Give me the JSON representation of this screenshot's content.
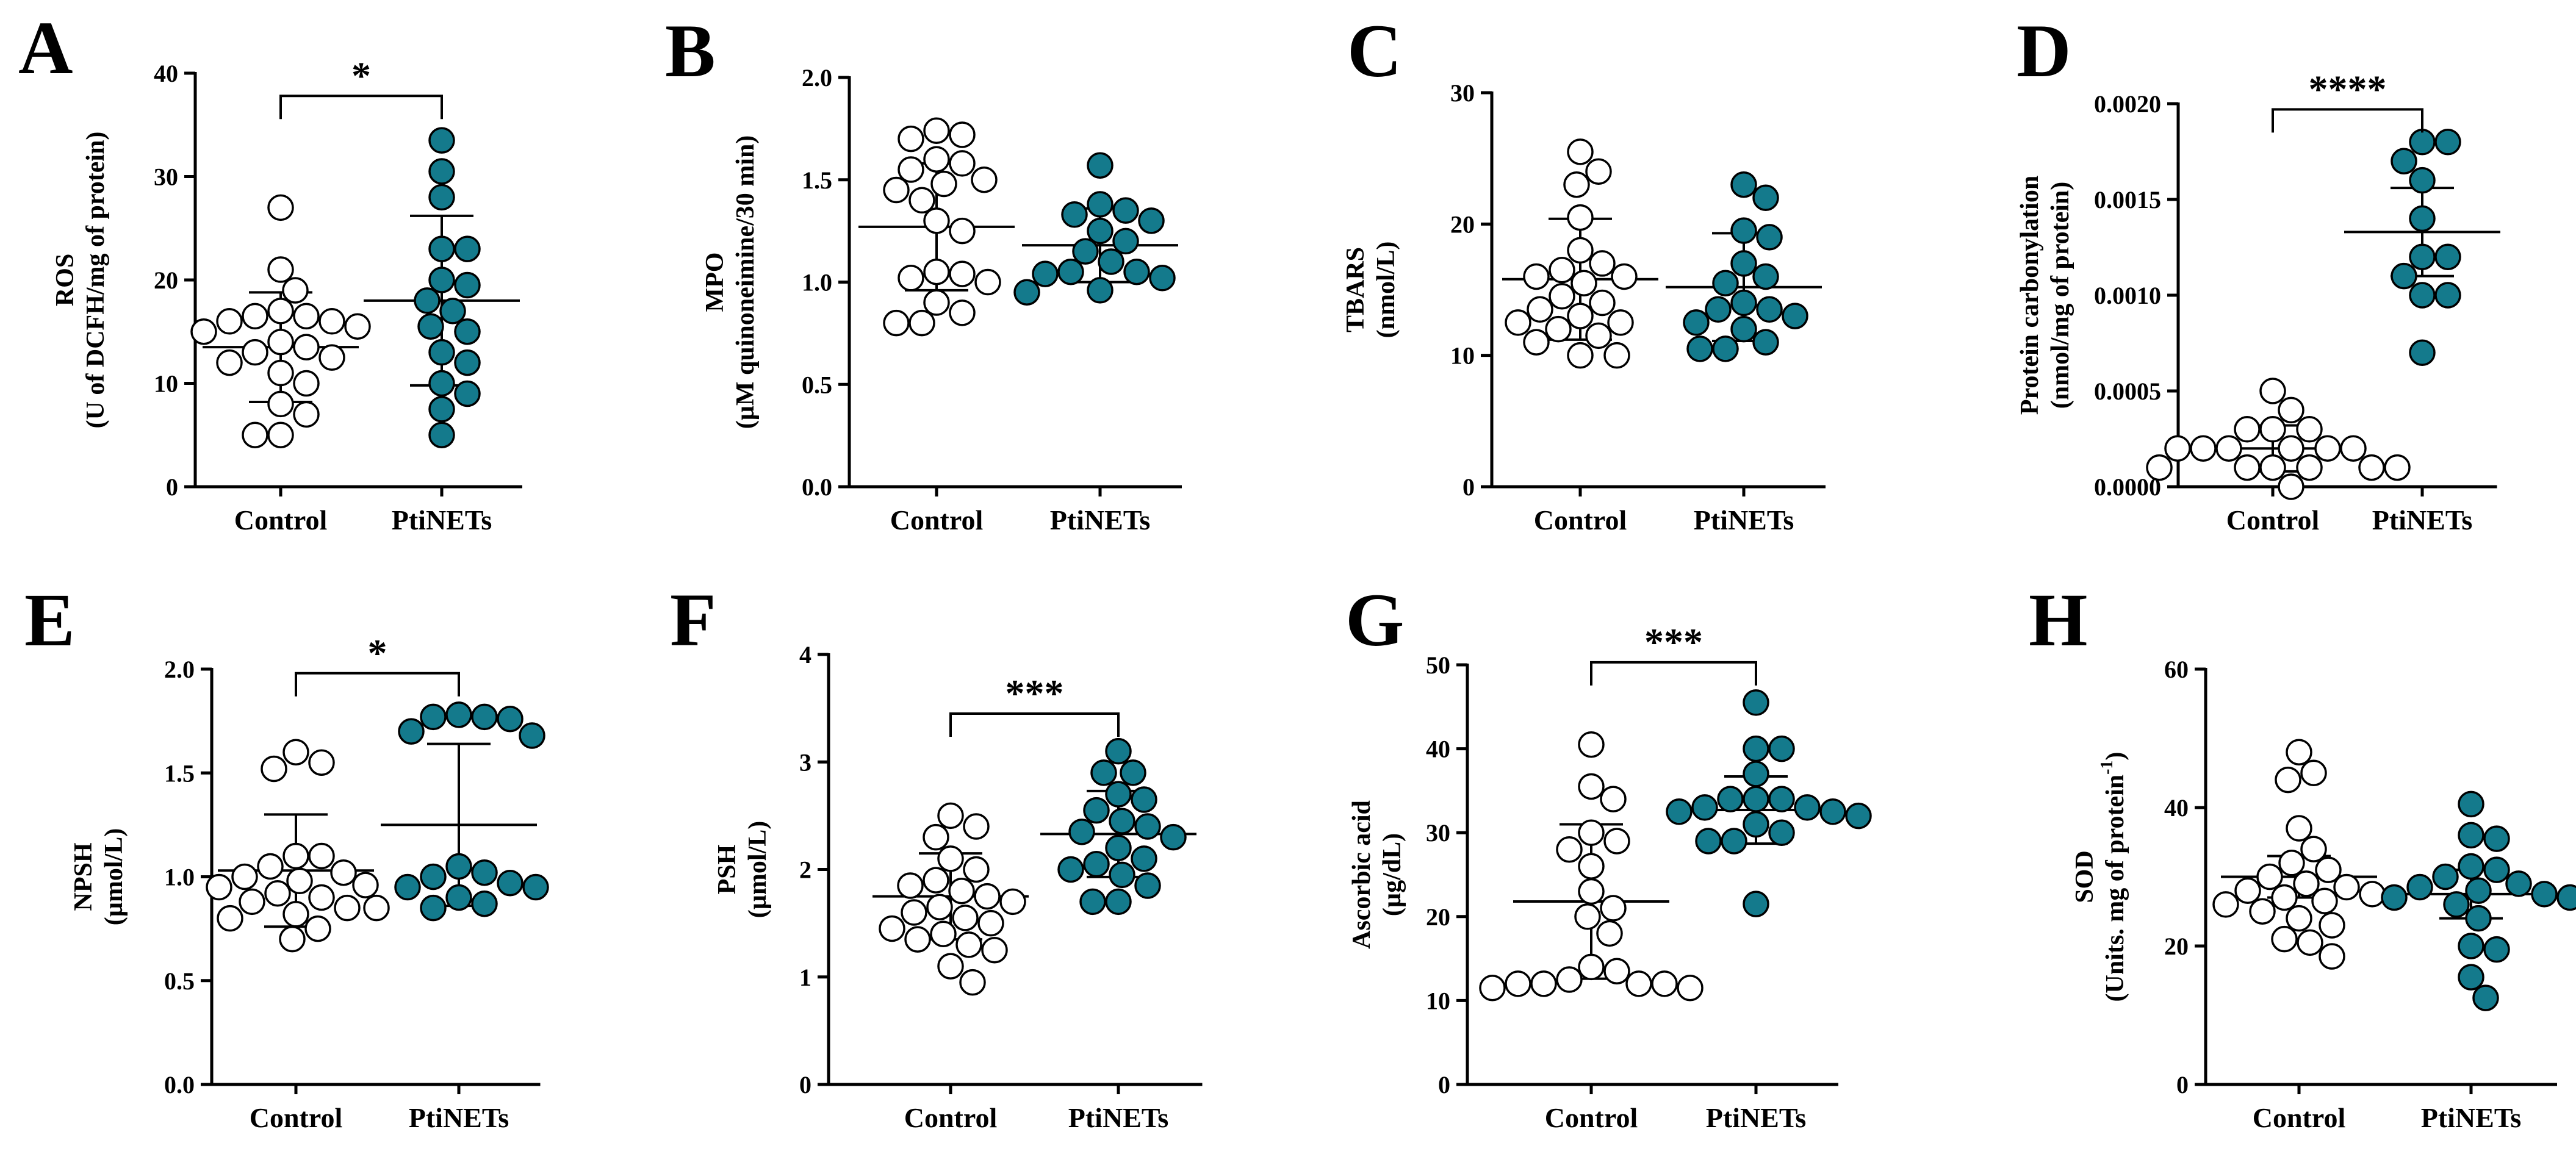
{
  "chart_data": [
    {
      "type": "scatter",
      "letter": "A",
      "ylabel": [
        "ROS",
        "(U of DCFH/mg of protein)"
      ],
      "ylim": [
        0,
        40
      ],
      "yticks": [
        0,
        10,
        20,
        30,
        40
      ],
      "ytick_labels": [
        "0",
        "10",
        "20",
        "30",
        "40"
      ],
      "categories": [
        "Control",
        "PtiNETs"
      ],
      "series": [
        {
          "name": "Control",
          "fill": "#ffffff",
          "values": [
            27,
            21,
            19,
            17,
            16.5,
            16.5,
            16,
            16,
            15.5,
            15,
            14,
            13.5,
            13,
            12.5,
            12,
            11,
            10,
            8,
            7,
            5,
            5
          ],
          "mean": 13.5,
          "sd_upper": 18.8,
          "sd_lower": 8.2
        },
        {
          "name": "PtiNETs",
          "fill": "#147a8c",
          "values": [
            33.5,
            30.5,
            28,
            23,
            23,
            20,
            19.5,
            18,
            17,
            15.5,
            15,
            13,
            12,
            10,
            9,
            7.5,
            5
          ],
          "mean": 18,
          "sd_upper": 26.2,
          "sd_lower": 9.8
        }
      ],
      "significance": "*"
    },
    {
      "type": "scatter",
      "letter": "B",
      "ylabel": [
        "MPO",
        "(µM quinoneimine/30 min)"
      ],
      "ylim": [
        0,
        2
      ],
      "yticks": [
        0,
        0.5,
        1,
        1.5,
        2
      ],
      "ytick_labels": [
        "0.0",
        "0.5",
        "1.0",
        "1.5",
        "2.0"
      ],
      "categories": [
        "Control",
        "PtiNETs"
      ],
      "series": [
        {
          "name": "Control",
          "fill": "#ffffff",
          "values": [
            1.74,
            1.72,
            1.7,
            1.6,
            1.58,
            1.55,
            1.5,
            1.48,
            1.45,
            1.4,
            1.3,
            1.25,
            1.05,
            1.04,
            1.02,
            1.0,
            0.9,
            0.85,
            0.8,
            0.8
          ],
          "mean": 1.27,
          "sd_upper": 1.58,
          "sd_lower": 0.96
        },
        {
          "name": "PtiNETs",
          "fill": "#147a8c",
          "values": [
            1.57,
            1.38,
            1.35,
            1.33,
            1.3,
            1.25,
            1.2,
            1.15,
            1.1,
            1.05,
            1.05,
            1.04,
            1.02,
            0.96,
            0.95
          ],
          "mean": 1.18,
          "sd_upper": 1.36,
          "sd_lower": 1.0
        }
      ],
      "significance": ""
    },
    {
      "type": "scatter",
      "letter": "C",
      "ylabel": [
        "TBARS",
        "(nmol/L)"
      ],
      "ylim": [
        0,
        30
      ],
      "yticks": [
        0,
        10,
        20,
        30
      ],
      "ytick_labels": [
        "0",
        "10",
        "20",
        "30"
      ],
      "categories": [
        "Control",
        "PtiNETs"
      ],
      "series": [
        {
          "name": "Control",
          "fill": "#ffffff",
          "values": [
            25.5,
            24,
            23,
            20.5,
            18,
            17,
            16.5,
            16,
            16,
            15.5,
            14.5,
            14,
            13.5,
            13,
            12.5,
            12.5,
            12,
            11.5,
            11,
            10,
            10
          ],
          "mean": 15.8,
          "sd_upper": 20.4,
          "sd_lower": 11.2
        },
        {
          "name": "PtiNETs",
          "fill": "#147a8c",
          "values": [
            23,
            22,
            19.5,
            19,
            17,
            16,
            15.5,
            14,
            13.5,
            13.5,
            13,
            12.5,
            12,
            11,
            10.5,
            10.5
          ],
          "mean": 15.2,
          "sd_upper": 19.3,
          "sd_lower": 11.1
        }
      ],
      "significance": ""
    },
    {
      "type": "scatter",
      "letter": "D",
      "ylabel": [
        "Protein carbonylation",
        "(nmol/mg of protein)"
      ],
      "ylim": [
        0,
        0.002
      ],
      "yticks": [
        0,
        0.0005,
        0.001,
        0.0015,
        0.002
      ],
      "ytick_labels": [
        "0.0000",
        "0.0005",
        "0.0010",
        "0.0015",
        "0.0020"
      ],
      "categories": [
        "Control",
        "PtiNETs"
      ],
      "series": [
        {
          "name": "Control",
          "fill": "#ffffff",
          "values": [
            0.0005,
            0.0004,
            0.0003,
            0.0003,
            0.0003,
            0.0002,
            0.0002,
            0.0002,
            0.0002,
            0.0002,
            0.0002,
            0.0001,
            0.0001,
            0.0001,
            0.0001,
            0.0001,
            0.0001,
            0.0
          ],
          "mean": 0.0002,
          "sd_upper": 0.00032,
          "sd_lower": 8e-05
        },
        {
          "name": "PtiNETs",
          "fill": "#147a8c",
          "values": [
            0.0018,
            0.0018,
            0.0017,
            0.0016,
            0.0014,
            0.0012,
            0.0012,
            0.0011,
            0.001,
            0.001,
            0.0007
          ],
          "mean": 0.00133,
          "sd_upper": 0.00156,
          "sd_lower": 0.0011
        }
      ],
      "significance": "****"
    },
    {
      "type": "scatter",
      "letter": "E",
      "ylabel": [
        "NPSH",
        "(µmol/L)"
      ],
      "ylim": [
        0,
        2
      ],
      "yticks": [
        0,
        0.5,
        1,
        1.5,
        2
      ],
      "ytick_labels": [
        "0.0",
        "0.5",
        "1.0",
        "1.5",
        "2.0"
      ],
      "categories": [
        "Control",
        "PtiNETs"
      ],
      "series": [
        {
          "name": "Control",
          "fill": "#ffffff",
          "values": [
            1.6,
            1.55,
            1.52,
            1.1,
            1.1,
            1.05,
            1.02,
            1.0,
            0.98,
            0.96,
            0.95,
            0.92,
            0.9,
            0.88,
            0.85,
            0.85,
            0.82,
            0.8,
            0.75,
            0.7
          ],
          "mean": 1.03,
          "sd_upper": 1.3,
          "sd_lower": 0.76
        },
        {
          "name": "PtiNETs",
          "fill": "#147a8c",
          "values": [
            1.78,
            1.77,
            1.77,
            1.76,
            1.7,
            1.68,
            1.05,
            1.02,
            1.0,
            0.97,
            0.95,
            0.95,
            0.9,
            0.87,
            0.85
          ],
          "mean": 1.25,
          "sd_upper": 1.64,
          "sd_lower": 0.86
        }
      ],
      "significance": "*"
    },
    {
      "type": "scatter",
      "letter": "F",
      "ylabel": [
        "PSH",
        "(µmol/L)"
      ],
      "ylim": [
        0,
        4
      ],
      "yticks": [
        0,
        1,
        2,
        3,
        4
      ],
      "ytick_labels": [
        "0",
        "1",
        "2",
        "3",
        "4"
      ],
      "categories": [
        "Control",
        "PtiNETs"
      ],
      "series": [
        {
          "name": "Control",
          "fill": "#ffffff",
          "values": [
            2.5,
            2.4,
            2.3,
            2.1,
            2.0,
            1.9,
            1.85,
            1.8,
            1.75,
            1.7,
            1.65,
            1.6,
            1.55,
            1.5,
            1.45,
            1.4,
            1.35,
            1.3,
            1.25,
            1.1,
            0.95
          ],
          "mean": 1.75,
          "sd_upper": 2.15,
          "sd_lower": 1.35
        },
        {
          "name": "PtiNETs",
          "fill": "#147a8c",
          "values": [
            3.1,
            2.9,
            2.9,
            2.7,
            2.65,
            2.55,
            2.45,
            2.4,
            2.35,
            2.3,
            2.2,
            2.1,
            2.05,
            2.0,
            1.95,
            1.85,
            1.7,
            1.7
          ],
          "mean": 2.33,
          "sd_upper": 2.73,
          "sd_lower": 1.93
        }
      ],
      "significance": "***"
    },
    {
      "type": "scatter",
      "letter": "G",
      "ylabel": [
        "Ascorbic acid",
        "(µg/dL)"
      ],
      "ylim": [
        0,
        50
      ],
      "yticks": [
        0,
        10,
        20,
        30,
        40,
        50
      ],
      "ytick_labels": [
        "0",
        "10",
        "20",
        "30",
        "40",
        "50"
      ],
      "categories": [
        "Control",
        "PtiNETs"
      ],
      "series": [
        {
          "name": "Control",
          "fill": "#ffffff",
          "values": [
            40.5,
            35.5,
            34,
            30,
            29,
            28,
            26,
            23,
            21,
            20,
            18,
            14,
            13.5,
            12.5,
            12,
            12,
            12,
            11.5,
            12,
            11.5
          ],
          "mean": 21.8,
          "sd_upper": 31,
          "sd_lower": 12.6
        },
        {
          "name": "PtiNETs",
          "fill": "#147a8c",
          "values": [
            45.5,
            40,
            40,
            37,
            34,
            34,
            34,
            33,
            33,
            32.5,
            32.5,
            32,
            31,
            30,
            29,
            29,
            21.5
          ],
          "mean": 32.7,
          "sd_upper": 36.7,
          "sd_lower": 28.7
        }
      ],
      "significance": "***"
    },
    {
      "type": "scatter",
      "letter": "H",
      "ylabel": [
        "SOD",
        "(Units. mg of protein",
        "-1",
        ")"
      ],
      "ylim": [
        0,
        60
      ],
      "yticks": [
        0,
        20,
        40,
        60
      ],
      "ytick_labels": [
        "0",
        "20",
        "40",
        "60"
      ],
      "categories": [
        "Control",
        "PtiNETs"
      ],
      "series": [
        {
          "name": "Control",
          "fill": "#ffffff",
          "values": [
            48,
            45,
            44,
            37,
            34,
            32,
            31,
            30,
            29,
            28.5,
            28,
            27.5,
            27,
            26.5,
            26,
            25,
            24,
            23,
            21,
            20.5,
            18.5
          ],
          "mean": 30,
          "sd_upper": 33,
          "sd_lower": 27
        },
        {
          "name": "PtiNETs",
          "fill": "#147a8c",
          "values": [
            40.5,
            36,
            35.5,
            31.5,
            31,
            30,
            29,
            28.5,
            28,
            27.5,
            27,
            27,
            26,
            24,
            20,
            19.5,
            15.5,
            12.5
          ],
          "mean": 27.5,
          "sd_upper": 31,
          "sd_lower": 24
        }
      ],
      "significance": ""
    }
  ]
}
